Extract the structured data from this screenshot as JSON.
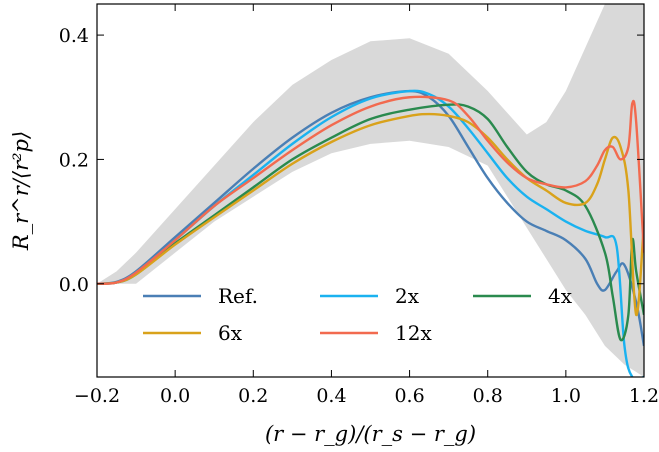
{
  "chart_data": {
    "type": "line",
    "xlabel": "(r − r_g)/(r_s − r_g)",
    "ylabel": "R_r^r/⟨r²p⟩",
    "xlim": [
      -0.2,
      1.2
    ],
    "ylim": [
      -0.15,
      0.45
    ],
    "xticks": [
      -0.2,
      0.0,
      0.2,
      0.4,
      0.6,
      0.8,
      1.0,
      1.2
    ],
    "yticks": [
      0.0,
      0.2,
      0.4
    ],
    "xtick_labels": [
      "−0.2",
      "0.0",
      "0.2",
      "0.4",
      "0.6",
      "0.8",
      "1.0",
      "1.2"
    ],
    "ytick_labels": [
      "0.0",
      "0.2",
      "0.4"
    ],
    "grid": false,
    "legend": {
      "placement": "bottom",
      "columns": 3
    },
    "band": {
      "color": "#d9d9d9",
      "x": [
        -0.2,
        -0.15,
        -0.1,
        0.0,
        0.1,
        0.2,
        0.3,
        0.4,
        0.5,
        0.6,
        0.7,
        0.8,
        0.9,
        0.95,
        1.0,
        1.05,
        1.1,
        1.15,
        1.2
      ],
      "upper": [
        0.0,
        0.02,
        0.05,
        0.12,
        0.19,
        0.26,
        0.32,
        0.36,
        0.39,
        0.395,
        0.37,
        0.31,
        0.24,
        0.26,
        0.31,
        0.38,
        0.45,
        0.45,
        0.45
      ],
      "lower": [
        0.0,
        0.0,
        0.0,
        0.05,
        0.1,
        0.14,
        0.18,
        0.21,
        0.225,
        0.23,
        0.22,
        0.19,
        0.09,
        0.04,
        -0.01,
        -0.05,
        -0.1,
        -0.13,
        -0.15
      ]
    },
    "series": [
      {
        "name": "Ref.",
        "color": "#4a7fb5",
        "x": [
          -0.2,
          -0.15,
          -0.1,
          0.0,
          0.1,
          0.2,
          0.3,
          0.4,
          0.5,
          0.6,
          0.65,
          0.7,
          0.75,
          0.8,
          0.85,
          0.9,
          0.95,
          1.0,
          1.05,
          1.08,
          1.1,
          1.13,
          1.15,
          1.18,
          1.2
        ],
        "y": [
          0.0,
          0.003,
          0.02,
          0.075,
          0.13,
          0.185,
          0.235,
          0.275,
          0.3,
          0.31,
          0.3,
          0.27,
          0.22,
          0.17,
          0.13,
          0.1,
          0.085,
          0.07,
          0.04,
          0.0,
          -0.01,
          0.02,
          0.03,
          -0.03,
          -0.1
        ]
      },
      {
        "name": "2x",
        "color": "#1ab2f0",
        "x": [
          -0.2,
          -0.15,
          -0.1,
          0.0,
          0.1,
          0.2,
          0.3,
          0.4,
          0.5,
          0.6,
          0.65,
          0.7,
          0.75,
          0.8,
          0.85,
          0.9,
          0.95,
          1.0,
          1.05,
          1.1,
          1.13,
          1.15,
          1.17,
          1.2
        ],
        "y": [
          0.0,
          0.002,
          0.018,
          0.07,
          0.125,
          0.175,
          0.225,
          0.268,
          0.298,
          0.31,
          0.305,
          0.285,
          0.25,
          0.21,
          0.17,
          0.14,
          0.12,
          0.1,
          0.085,
          0.075,
          0.06,
          -0.1,
          -0.15,
          -0.15
        ]
      },
      {
        "name": "4x",
        "color": "#2a8a4e",
        "x": [
          -0.2,
          -0.15,
          -0.1,
          0.0,
          0.1,
          0.2,
          0.3,
          0.4,
          0.5,
          0.6,
          0.7,
          0.75,
          0.8,
          0.85,
          0.9,
          0.95,
          1.0,
          1.05,
          1.1,
          1.12,
          1.14,
          1.16,
          1.17,
          1.18,
          1.2
        ],
        "y": [
          0.0,
          0.002,
          0.015,
          0.065,
          0.11,
          0.155,
          0.2,
          0.235,
          0.265,
          0.28,
          0.288,
          0.285,
          0.265,
          0.22,
          0.18,
          0.16,
          0.15,
          0.125,
          0.05,
          -0.02,
          -0.09,
          -0.05,
          0.07,
          0.02,
          -0.05
        ]
      },
      {
        "name": "6x",
        "color": "#d9a21b",
        "x": [
          -0.2,
          -0.15,
          -0.1,
          0.0,
          0.1,
          0.2,
          0.3,
          0.4,
          0.5,
          0.6,
          0.65,
          0.7,
          0.75,
          0.8,
          0.85,
          0.9,
          0.95,
          1.0,
          1.05,
          1.08,
          1.1,
          1.12,
          1.14,
          1.16,
          1.18,
          1.2
        ],
        "y": [
          0.0,
          0.002,
          0.015,
          0.063,
          0.107,
          0.15,
          0.193,
          0.228,
          0.255,
          0.27,
          0.273,
          0.27,
          0.26,
          0.235,
          0.2,
          0.17,
          0.15,
          0.13,
          0.13,
          0.16,
          0.2,
          0.235,
          0.22,
          0.15,
          -0.05,
          0.1
        ]
      },
      {
        "name": "12x",
        "color": "#f26a4f",
        "x": [
          -0.2,
          -0.15,
          -0.1,
          0.0,
          0.1,
          0.2,
          0.3,
          0.4,
          0.5,
          0.6,
          0.7,
          0.75,
          0.8,
          0.85,
          0.9,
          0.95,
          1.0,
          1.05,
          1.08,
          1.1,
          1.12,
          1.14,
          1.16,
          1.17,
          1.18,
          1.2
        ],
        "y": [
          0.0,
          0.002,
          0.018,
          0.07,
          0.125,
          0.17,
          0.215,
          0.255,
          0.285,
          0.3,
          0.295,
          0.27,
          0.23,
          0.195,
          0.17,
          0.16,
          0.155,
          0.165,
          0.19,
          0.215,
          0.22,
          0.2,
          0.22,
          0.29,
          0.26,
          0.05
        ]
      }
    ]
  }
}
